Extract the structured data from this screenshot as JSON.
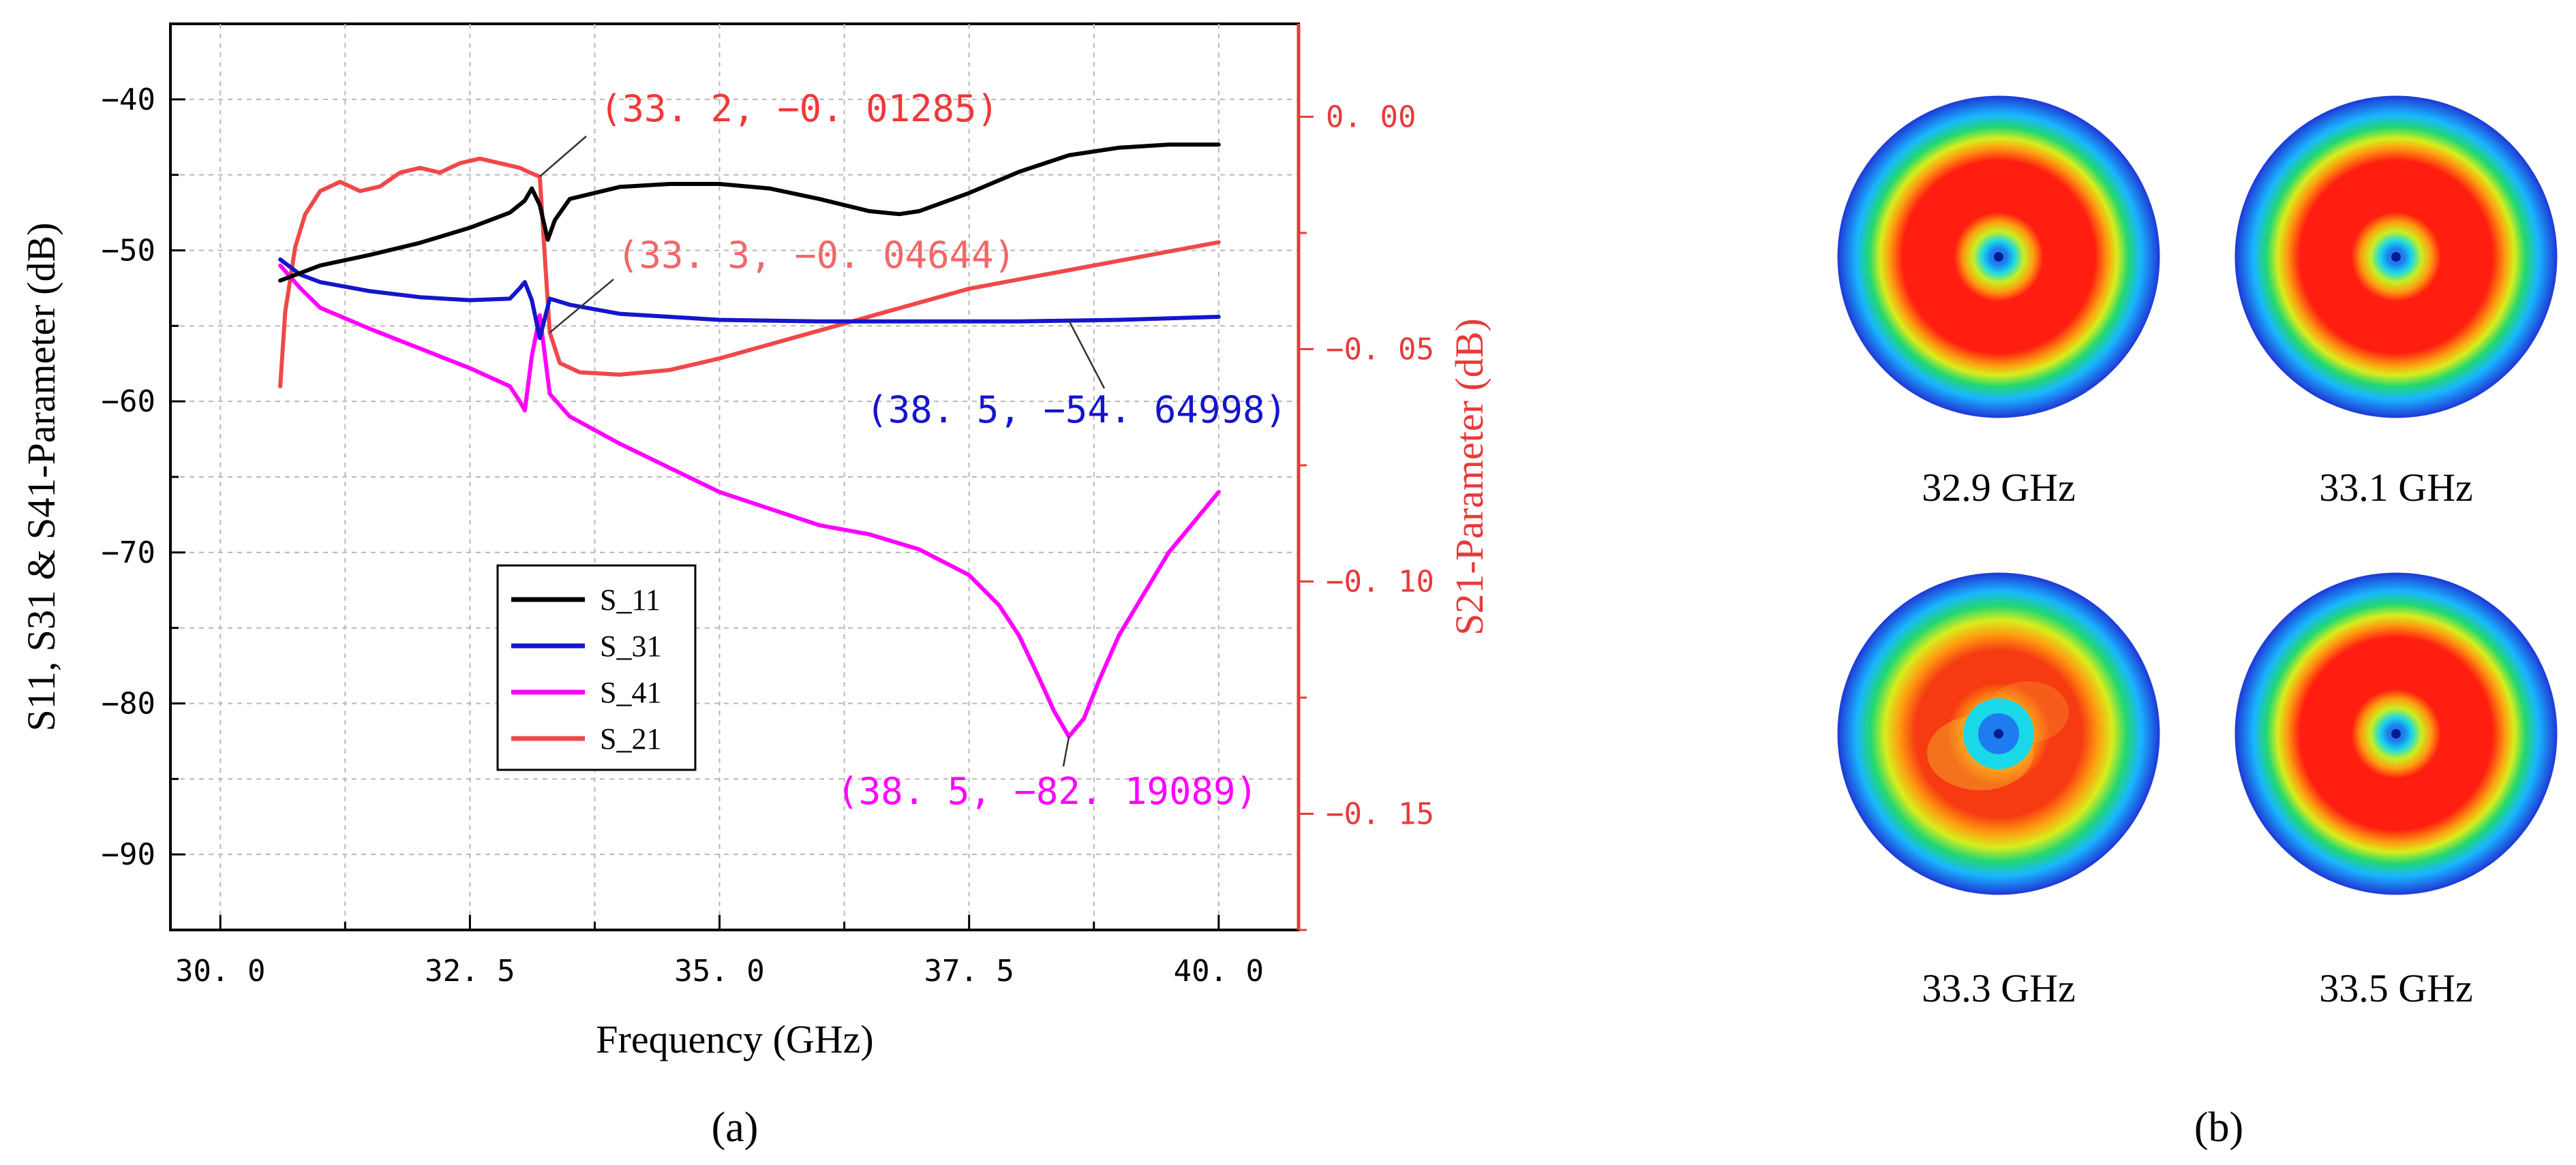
{
  "chart_data": [
    {
      "type": "line",
      "xlabel": "Frequency (GHz)",
      "ylabel_left": "S11, S31 & S41-Parameter (dB)",
      "ylabel_right": "S21-Parameter (dB)",
      "xlim": [
        29.5,
        40.8
      ],
      "ylim_left": [
        -95,
        -35
      ],
      "ylim_right": [
        -0.175,
        0.02
      ],
      "x_ticks": [
        30,
        32.5,
        35,
        37.5,
        40
      ],
      "x_tick_labels": [
        "30. 0",
        "32. 5",
        "35. 0",
        "37. 5",
        "40. 0"
      ],
      "y_left_ticks": [
        -40,
        -50,
        -60,
        -70,
        -80,
        -90
      ],
      "y_left_tick_labels": [
        "−40",
        "−50",
        "−60",
        "−70",
        "−80",
        "−90"
      ],
      "y_right_ticks": [
        0,
        -0.05,
        -0.1,
        -0.15
      ],
      "y_right_tick_labels": [
        "0. 00",
        "−0. 05",
        "−0. 10",
        "−0. 15"
      ],
      "grid": true,
      "legend_position": "lower-left",
      "series": [
        {
          "name": "S_11",
          "axis": "left",
          "color": "#000000",
          "x": [
            30.6,
            30.8,
            31.0,
            31.5,
            32.0,
            32.5,
            32.9,
            33.05,
            33.12,
            33.2,
            33.28,
            33.35,
            33.5,
            34.0,
            34.5,
            35.0,
            35.5,
            36.0,
            36.5,
            36.8,
            37.0,
            37.5,
            38.0,
            38.5,
            39.0,
            39.5,
            40.0
          ],
          "values": [
            -52.0,
            -51.5,
            -51.0,
            -50.3,
            -49.5,
            -48.5,
            -47.5,
            -46.7,
            -45.9,
            -47.0,
            -49.3,
            -48.0,
            -46.6,
            -45.8,
            -45.6,
            -45.6,
            -45.9,
            -46.6,
            -47.4,
            -47.6,
            -47.4,
            -46.2,
            -44.8,
            -43.7,
            -43.2,
            -43.0,
            -43.0
          ]
        },
        {
          "name": "S_31",
          "axis": "left",
          "color": "#1515cc",
          "x": [
            30.6,
            30.8,
            31.0,
            31.5,
            32.0,
            32.5,
            32.9,
            33.0,
            33.05,
            33.12,
            33.2,
            33.3,
            33.5,
            34.0,
            35.0,
            36.0,
            37.0,
            38.0,
            38.5,
            39.0,
            40.0
          ],
          "values": [
            -50.6,
            -51.6,
            -52.1,
            -52.7,
            -53.1,
            -53.3,
            -53.2,
            -52.5,
            -52.1,
            -53.3,
            -55.8,
            -53.2,
            -53.6,
            -54.2,
            -54.6,
            -54.7,
            -54.7,
            -54.7,
            -54.65,
            -54.6,
            -54.4
          ]
        },
        {
          "name": "S_41",
          "axis": "left",
          "color": "#ff00ff",
          "x": [
            30.6,
            30.8,
            31.0,
            31.5,
            32.0,
            32.5,
            32.9,
            33.0,
            33.05,
            33.12,
            33.2,
            33.3,
            33.5,
            34.0,
            35.0,
            36.0,
            36.5,
            37.0,
            37.5,
            37.8,
            38.0,
            38.2,
            38.35,
            38.5,
            38.65,
            38.8,
            39.0,
            39.5,
            40.0
          ],
          "values": [
            -51.0,
            -52.5,
            -53.8,
            -55.2,
            -56.5,
            -57.8,
            -59.0,
            -60.0,
            -60.6,
            -57.0,
            -54.3,
            -59.5,
            -61.0,
            -62.8,
            -66.0,
            -68.2,
            -68.8,
            -69.8,
            -71.5,
            -73.5,
            -75.5,
            -78.3,
            -80.5,
            -82.19,
            -81.0,
            -78.5,
            -75.5,
            -70.0,
            -66.0
          ]
        },
        {
          "name": "S_21",
          "axis": "right",
          "color": "#f04848",
          "x": [
            30.6,
            30.65,
            30.75,
            30.85,
            31.0,
            31.2,
            31.4,
            31.6,
            31.8,
            32.0,
            32.2,
            32.4,
            32.6,
            32.8,
            33.0,
            33.1,
            33.2,
            33.25,
            33.3,
            33.4,
            33.6,
            34.0,
            34.5,
            35.0,
            35.5,
            36.0,
            36.5,
            37.0,
            37.5,
            38.0,
            38.5,
            39.0,
            39.5,
            40.0
          ],
          "values": [
            -0.058,
            -0.042,
            -0.028,
            -0.021,
            -0.016,
            -0.014,
            -0.016,
            -0.015,
            -0.012,
            -0.011,
            -0.012,
            -0.01,
            -0.009,
            -0.01,
            -0.011,
            -0.012,
            -0.0129,
            -0.03,
            -0.0464,
            -0.053,
            -0.055,
            -0.0555,
            -0.0545,
            -0.052,
            -0.049,
            -0.046,
            -0.043,
            -0.04,
            -0.037,
            -0.035,
            -0.033,
            -0.031,
            -0.029,
            -0.027
          ]
        }
      ],
      "annotations": [
        {
          "text": "(33. 2,  −0. 01285)",
          "color": "#f03838",
          "series": "S_21"
        },
        {
          "text": "(33. 3,  −0. 04644)",
          "color": "#f06868",
          "series": "S_21"
        },
        {
          "text": "(38. 5,  −54. 64998)",
          "color": "#1515cc",
          "series": "S_31"
        },
        {
          "text": "(38. 5,  −82. 19089)",
          "color": "#ff00ff",
          "series": "S_41"
        }
      ]
    }
  ],
  "panel_a_label": "(a)",
  "panel_b_label": "(b)",
  "panel_b": {
    "plots": [
      {
        "caption": "32.9 GHz",
        "pattern": "radiation-pattern-ring"
      },
      {
        "caption": "33.1 GHz",
        "pattern": "radiation-pattern-ring"
      },
      {
        "caption": "33.3 GHz",
        "pattern": "radiation-pattern-ring-distorted"
      },
      {
        "caption": "33.5 GHz",
        "pattern": "radiation-pattern-ring"
      }
    ],
    "colors": {
      "outer": "#1f3fd8",
      "ring1": "#19b6ff",
      "ring2": "#22d870",
      "ring3": "#d8ee1c",
      "core": "#ff1e10",
      "center_blue": "#1e7cf0"
    }
  }
}
